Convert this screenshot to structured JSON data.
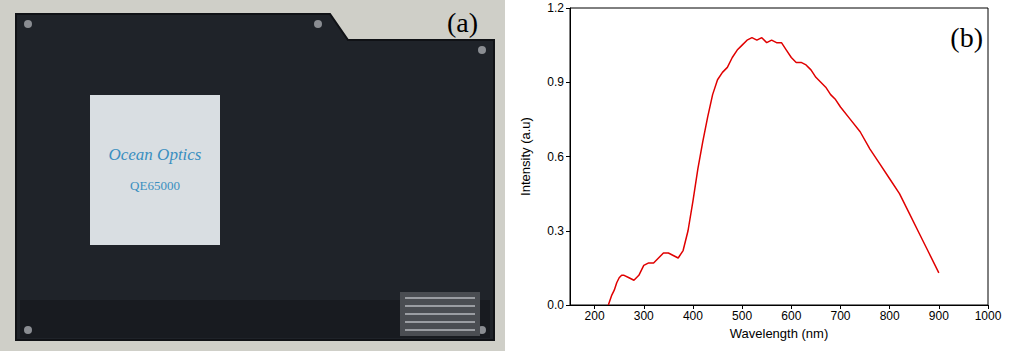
{
  "photo": {
    "label": "(a)",
    "texts": [
      "Ocean Optics",
      "QE65000"
    ]
  },
  "chart_data": {
    "type": "line",
    "title": "(b)",
    "x_label": "Wavelength (nm)",
    "y_label": "Intensity (a.u)",
    "x": [
      228,
      235,
      240,
      245,
      250,
      255,
      260,
      270,
      280,
      290,
      300,
      310,
      320,
      330,
      340,
      350,
      360,
      370,
      380,
      390,
      400,
      410,
      420,
      430,
      440,
      450,
      460,
      470,
      480,
      490,
      500,
      510,
      520,
      530,
      540,
      550,
      560,
      570,
      580,
      590,
      600,
      610,
      620,
      630,
      640,
      650,
      660,
      670,
      680,
      690,
      700,
      720,
      740,
      760,
      780,
      800,
      820,
      840,
      860,
      880,
      900
    ],
    "values": [
      0.0,
      0.04,
      0.06,
      0.09,
      0.11,
      0.12,
      0.12,
      0.11,
      0.1,
      0.12,
      0.16,
      0.17,
      0.17,
      0.19,
      0.21,
      0.21,
      0.2,
      0.19,
      0.22,
      0.3,
      0.42,
      0.55,
      0.66,
      0.76,
      0.85,
      0.91,
      0.94,
      0.96,
      1.0,
      1.03,
      1.05,
      1.07,
      1.08,
      1.07,
      1.08,
      1.06,
      1.07,
      1.06,
      1.06,
      1.03,
      1.0,
      0.98,
      0.98,
      0.97,
      0.95,
      0.92,
      0.9,
      0.88,
      0.85,
      0.83,
      0.8,
      0.75,
      0.7,
      0.63,
      0.57,
      0.51,
      0.45,
      0.37,
      0.29,
      0.21,
      0.13
    ],
    "color": "#e00000",
    "xlim": [
      150,
      1000
    ],
    "xticks": [
      200,
      300,
      400,
      500,
      600,
      700,
      800,
      900,
      1000
    ],
    "ylim": [
      0,
      1.2
    ],
    "yticks": [
      {
        "value": 0,
        "label": "0.0"
      },
      0.3,
      0.6,
      0.9,
      1.2
    ],
    "grid": false
  }
}
